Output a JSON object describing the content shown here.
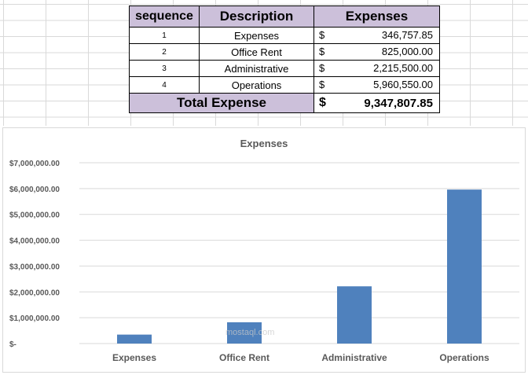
{
  "table": {
    "headers": {
      "sequence": "sequence",
      "description": "Description",
      "expenses": "Expenses"
    },
    "rows": [
      {
        "seq": "1",
        "desc": "Expenses",
        "cur": "$",
        "amount": "346,757.85"
      },
      {
        "seq": "2",
        "desc": "Office Rent",
        "cur": "$",
        "amount": "825,000.00"
      },
      {
        "seq": "3",
        "desc": "Administrative",
        "cur": "$",
        "amount": "2,215,500.00"
      },
      {
        "seq": "4",
        "desc": "Operations",
        "cur": "$",
        "amount": "5,960,550.00"
      }
    ],
    "total": {
      "label": "Total Expense",
      "cur": "$",
      "amount": "9,347,807.85"
    }
  },
  "watermark": "mostaql.com",
  "colors": {
    "bar": "#4f81bd",
    "header_fill": "#ccc0da",
    "gridline": "#d9d9d9"
  },
  "chart_data": {
    "type": "bar",
    "title": "Expenses",
    "categories": [
      "Expenses",
      "Office Rent",
      "Administrative",
      "Operations"
    ],
    "values": [
      346757.85,
      825000,
      2215500,
      5960550
    ],
    "ylim": [
      0,
      7000000
    ],
    "yticks": [
      0,
      1000000,
      2000000,
      3000000,
      4000000,
      5000000,
      6000000,
      7000000
    ],
    "ytick_labels": [
      "$-",
      "$1,000,000.00",
      "$2,000,000.00",
      "$3,000,000.00",
      "$4,000,000.00",
      "$5,000,000.00",
      "$6,000,000.00",
      "$7,000,000.00"
    ],
    "grid": true,
    "legend": "none",
    "xlabel": "",
    "ylabel": ""
  }
}
